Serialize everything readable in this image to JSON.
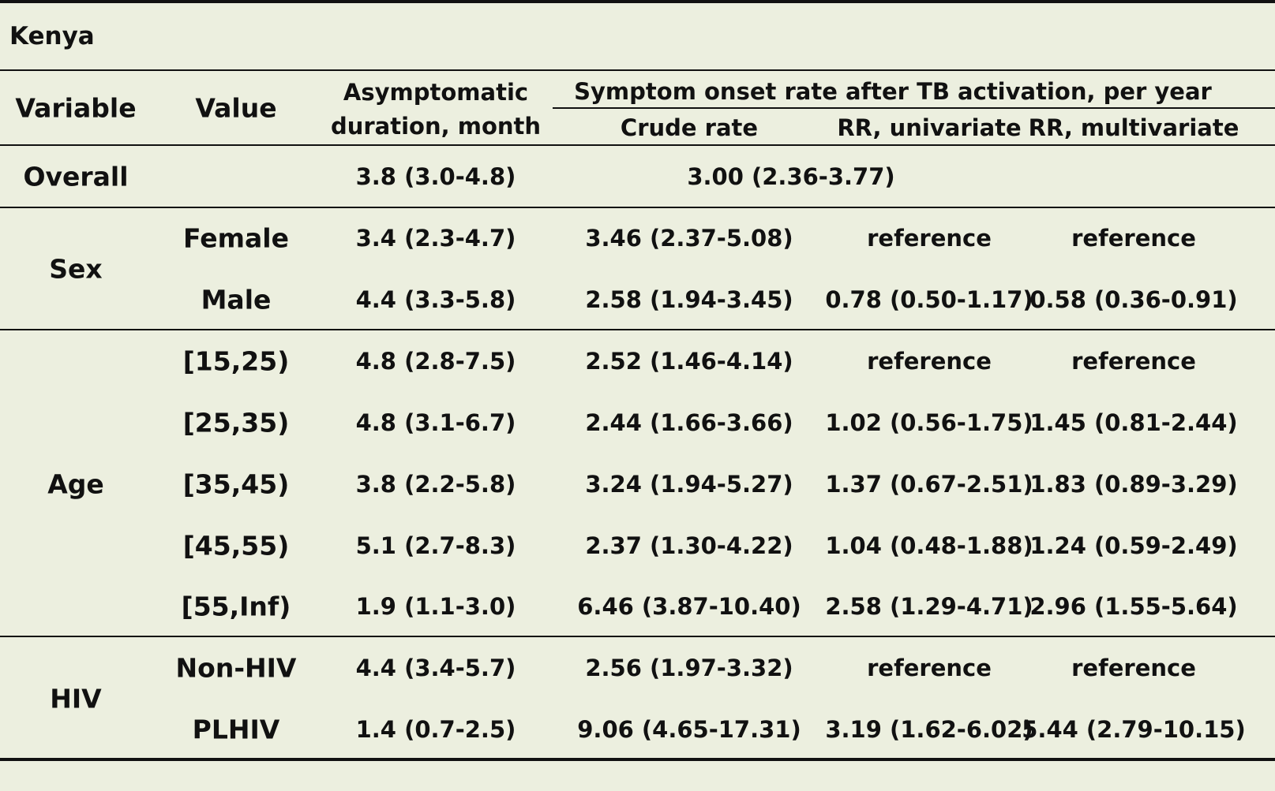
{
  "title": "Kenya",
  "headers": {
    "variable": "Variable",
    "value": "Value",
    "asym_line1": "Asymptomatic",
    "asym_line2": "duration, month",
    "group": "Symptom onset rate after TB activation, per year",
    "crude": "Crude rate",
    "rr_uni": "RR, univariate",
    "rr_multi": "RR, multivariate"
  },
  "overall": {
    "label": "Overall",
    "asym": "3.8 (3.0-4.8)",
    "rate": "3.00 (2.36-3.77)"
  },
  "groups": [
    {
      "variable": "Sex",
      "rows": [
        {
          "value": "Female",
          "asym": "3.4 (2.3-4.7)",
          "crude": "3.46 (2.37-5.08)",
          "rr_uni": "reference",
          "rr_multi": "reference"
        },
        {
          "value": "Male",
          "asym": "4.4 (3.3-5.8)",
          "crude": "2.58 (1.94-3.45)",
          "rr_uni": "0.78 (0.50-1.17)",
          "rr_multi": "0.58 (0.36-0.91)"
        }
      ]
    },
    {
      "variable": "Age",
      "rows": [
        {
          "value": "[15,25)",
          "asym": "4.8 (2.8-7.5)",
          "crude": "2.52 (1.46-4.14)",
          "rr_uni": "reference",
          "rr_multi": "reference"
        },
        {
          "value": "[25,35)",
          "asym": "4.8 (3.1-6.7)",
          "crude": "2.44 (1.66-3.66)",
          "rr_uni": "1.02 (0.56-1.75)",
          "rr_multi": "1.45 (0.81-2.44)"
        },
        {
          "value": "[35,45)",
          "asym": "3.8 (2.2-5.8)",
          "crude": "3.24 (1.94-5.27)",
          "rr_uni": "1.37 (0.67-2.51)",
          "rr_multi": "1.83 (0.89-3.29)"
        },
        {
          "value": "[45,55)",
          "asym": "5.1 (2.7-8.3)",
          "crude": "2.37 (1.30-4.22)",
          "rr_uni": "1.04 (0.48-1.88)",
          "rr_multi": "1.24 (0.59-2.49)"
        },
        {
          "value": "[55,Inf)",
          "asym": "1.9 (1.1-3.0)",
          "crude": "6.46 (3.87-10.40)",
          "rr_uni": "2.58 (1.29-4.71)",
          "rr_multi": "2.96 (1.55-5.64)"
        }
      ]
    },
    {
      "variable": "HIV",
      "rows": [
        {
          "value": "Non-HIV",
          "asym": "4.4 (3.4-5.7)",
          "crude": "2.56 (1.97-3.32)",
          "rr_uni": "reference",
          "rr_multi": "reference"
        },
        {
          "value": "PLHIV",
          "asym": "1.4 (0.7-2.5)",
          "crude": "9.06 (4.65-17.31)",
          "rr_uni": "3.19 (1.62-6.02)",
          "rr_multi": "5.44 (2.79-10.15)"
        }
      ]
    }
  ]
}
